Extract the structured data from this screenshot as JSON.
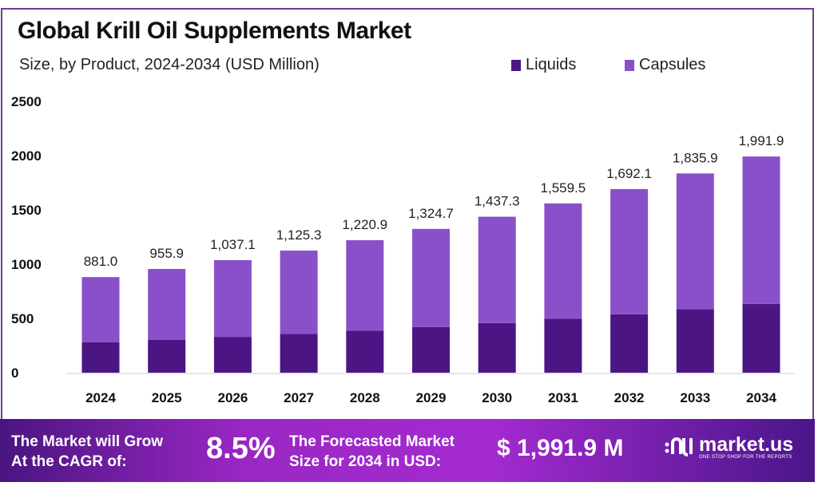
{
  "chart_data": {
    "type": "bar",
    "stacked": true,
    "title": "Global Krill Oil Supplements Market",
    "subtitle": "Size, by Product, 2024-2034 (USD Million)",
    "categories": [
      "2024",
      "2025",
      "2026",
      "2027",
      "2028",
      "2029",
      "2030",
      "2031",
      "2032",
      "2033",
      "2034"
    ],
    "series": [
      {
        "name": "Liquids",
        "color": "#4b1684",
        "values": [
          280,
          304,
          330,
          358,
          388,
          421,
          457,
          496,
          538,
          584,
          634
        ]
      },
      {
        "name": "Capsules",
        "color": "#8a50c9",
        "values": [
          601,
          651.9,
          707.1,
          767.3,
          832.9,
          903.7,
          980.3,
          1063.5,
          1154.1,
          1251.9,
          1357.9
        ]
      }
    ],
    "totals": [
      881.0,
      955.9,
      1037.1,
      1125.3,
      1220.9,
      1324.7,
      1437.3,
      1559.5,
      1692.1,
      1835.9,
      1991.9
    ],
    "total_labels": [
      "881.0",
      "955.9",
      "1,037.1",
      "1,125.3",
      "1,220.9",
      "1,324.7",
      "1,437.3",
      "1,559.5",
      "1,692.1",
      "1,835.9",
      "1,991.9"
    ],
    "yticks": [
      "0",
      "500",
      "1000",
      "1500",
      "2000",
      "2500"
    ],
    "ylim": [
      0,
      2500
    ],
    "grid": false,
    "legend_position": "top-right"
  },
  "banner": {
    "cagr_text_1": "The Market will Grow",
    "cagr_text_2": "At the CAGR of:",
    "cagr_value": "8.5%",
    "forecast_text_1": "The Forecasted Market",
    "forecast_text_2": "Size for 2034 in USD:",
    "forecast_value": "$ 1,991.9 M",
    "logo_text": "market.us",
    "logo_tagline": "ONE STOP SHOP FOR THE REPORTS"
  }
}
